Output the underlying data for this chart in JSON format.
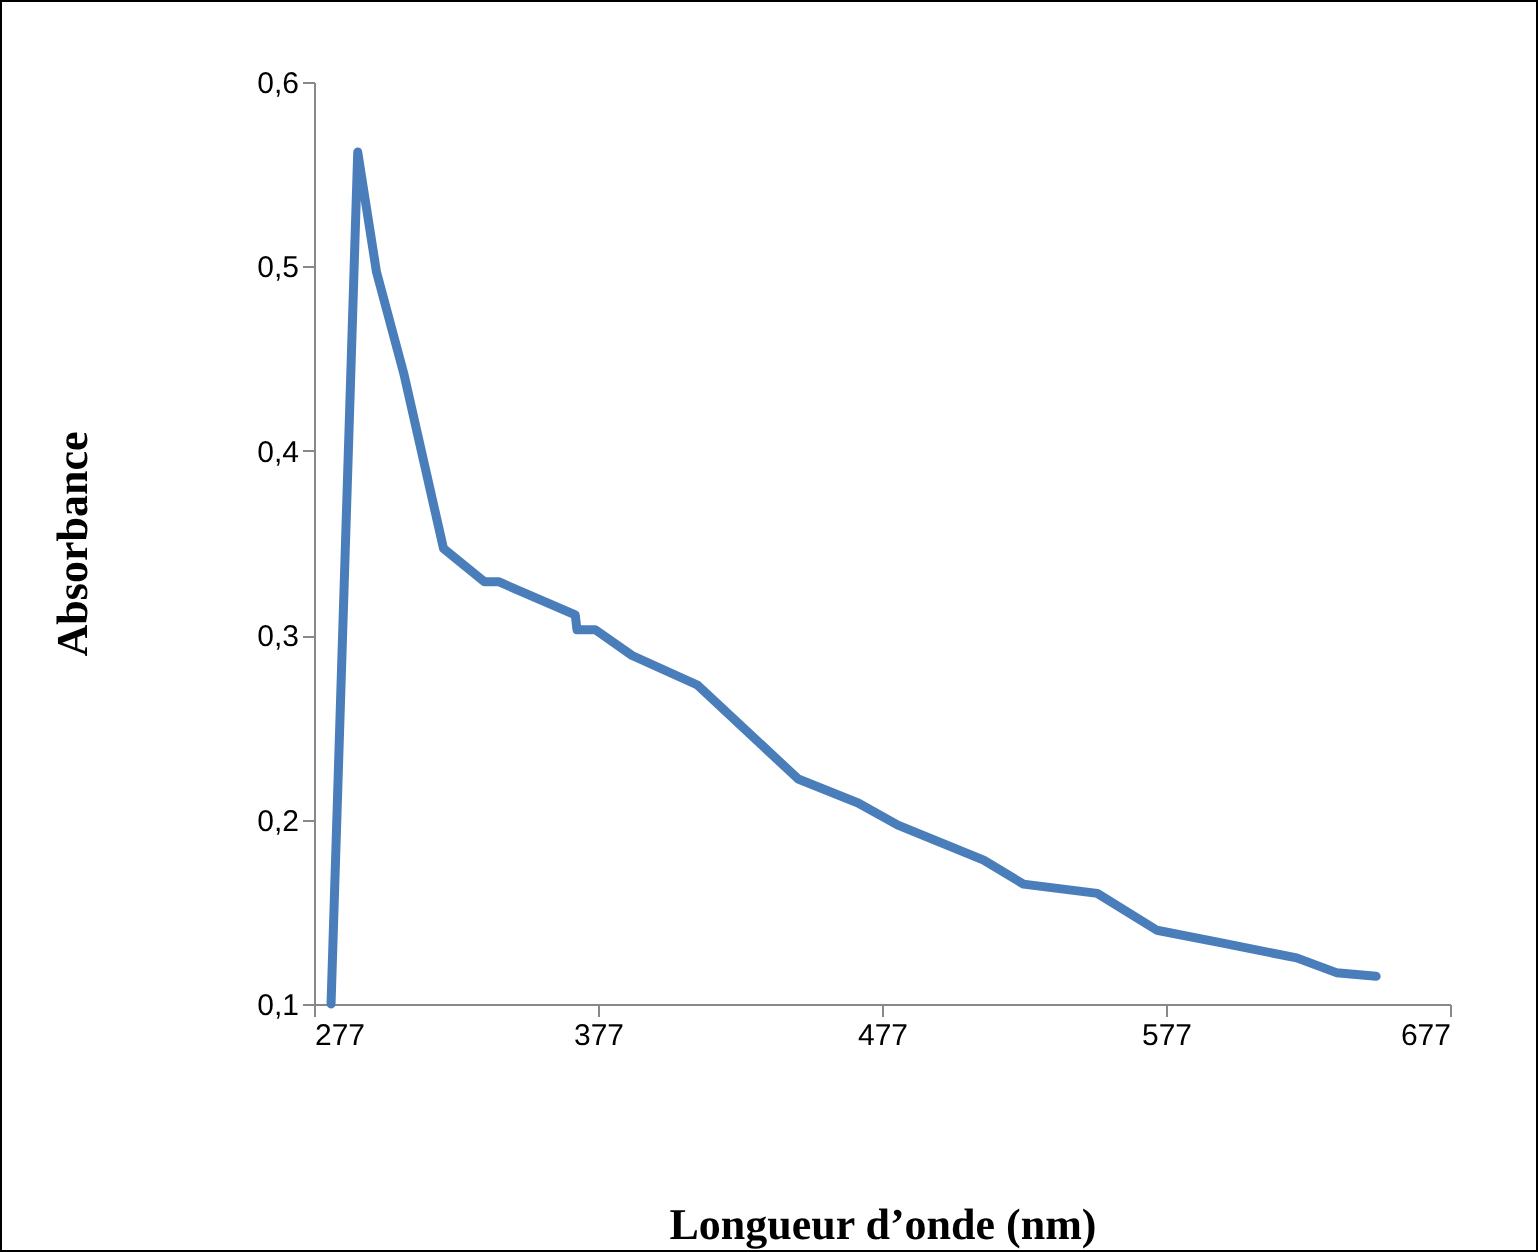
{
  "chart_data": {
    "type": "line",
    "xlabel": "Longueur d’onde (nm)",
    "ylabel": "Absorbance",
    "x": [
      283,
      292.4,
      299,
      308.6,
      322.6,
      337,
      342,
      369,
      369.6,
      376,
      389,
      412,
      447.5,
      468.6,
      482.6,
      512.8,
      526.8,
      552.8,
      573.8,
      597,
      623,
      637,
      651
    ],
    "series": [
      {
        "color": "#4a7ebb",
        "values": [
          0.1,
          0.562,
          0.497,
          0.442,
          0.347,
          0.329,
          0.329,
          0.311,
          0.303,
          0.303,
          0.289,
          0.273,
          0.222,
          0.209,
          0.197,
          0.178,
          0.165,
          0.16,
          0.14,
          0.133,
          0.125,
          0.117,
          0.115
        ]
      }
    ],
    "xlim": [
      277,
      677
    ],
    "xticks": [
      277,
      377,
      477,
      577,
      677
    ],
    "ylim": [
      0.1,
      0.6
    ],
    "yticks": [
      {
        "value": 0.1,
        "label": "0,1"
      },
      {
        "value": 0.2,
        "label": "0,2"
      },
      {
        "value": 0.3,
        "label": "0,3"
      },
      {
        "value": 0.4,
        "label": "0,4"
      },
      {
        "value": 0.5,
        "label": "0,5"
      },
      {
        "value": 0.6,
        "label": "0,6"
      }
    ],
    "grid": false,
    "marker": "none",
    "line_style": "solid"
  }
}
